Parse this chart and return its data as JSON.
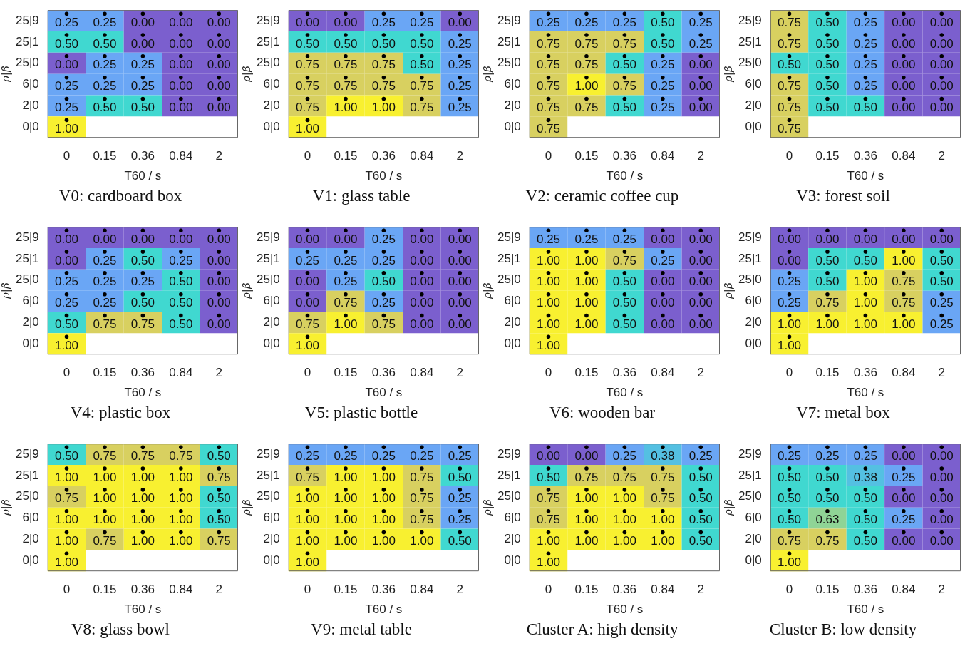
{
  "chart_data": [
    {
      "type": "heatmap",
      "title": "V0: cardboard box",
      "xlabel": "T60 / s",
      "ylabel": "ρ|β",
      "categories": [
        "0",
        "0.15",
        "0.36",
        "0.84",
        "2"
      ],
      "y_categories": [
        "25|9",
        "25|1",
        "25|0",
        "6|0",
        "2|0",
        "0|0"
      ],
      "cells": [
        [
          0.25,
          0.25,
          0,
          0,
          0
        ],
        [
          0.5,
          0.5,
          0,
          0,
          0
        ],
        [
          0,
          0.25,
          0.25,
          0,
          0
        ],
        [
          0.25,
          0.25,
          0.25,
          0,
          0
        ],
        [
          0.25,
          0.5,
          0.5,
          0,
          0
        ],
        [
          1,
          null,
          null,
          null,
          null
        ]
      ],
      "cell_labels": [
        [
          "0.25",
          "0.25",
          "0.00",
          "0.00",
          "0.00"
        ],
        [
          "0.50",
          "0.50",
          "0.00",
          "0.00",
          "0.00"
        ],
        [
          "0.00",
          "0.25",
          "0.25",
          "0.00",
          "0.00"
        ],
        [
          "0.25",
          "0.25",
          "0.25",
          "0.00",
          "0.00"
        ],
        [
          "0.25",
          "0.50",
          "0.50",
          "0.00",
          "0.00"
        ],
        [
          "1.00",
          null,
          null,
          null,
          null
        ]
      ]
    },
    {
      "type": "heatmap",
      "title": "V1: glass table",
      "xlabel": "T60 / s",
      "ylabel": "ρ|β",
      "categories": [
        "0",
        "0.15",
        "0.36",
        "0.84",
        "2"
      ],
      "y_categories": [
        "25|9",
        "25|1",
        "25|0",
        "6|0",
        "2|0",
        "0|0"
      ],
      "cells": [
        [
          0,
          0,
          0.25,
          0.25,
          0
        ],
        [
          0.5,
          0.5,
          0.5,
          0.5,
          0.25
        ],
        [
          0.75,
          0.75,
          0.75,
          0.5,
          0.25
        ],
        [
          0.75,
          0.75,
          0.75,
          0.75,
          0.25
        ],
        [
          0.75,
          1,
          1,
          0.75,
          0.25
        ],
        [
          1,
          null,
          null,
          null,
          null
        ]
      ],
      "cell_labels": [
        [
          "0.00",
          "0.00",
          "0.25",
          "0.25",
          "0.00"
        ],
        [
          "0.50",
          "0.50",
          "0.50",
          "0.50",
          "0.25"
        ],
        [
          "0.75",
          "0.75",
          "0.75",
          "0.50",
          "0.25"
        ],
        [
          "0.75",
          "0.75",
          "0.75",
          "0.75",
          "0.25"
        ],
        [
          "0.75",
          "1.00",
          "1.00",
          "0.75",
          "0.25"
        ],
        [
          "1.00",
          null,
          null,
          null,
          null
        ]
      ]
    },
    {
      "type": "heatmap",
      "title": "V2: ceramic coffee cup",
      "xlabel": "T60 / s",
      "ylabel": "ρ|β",
      "categories": [
        "0",
        "0.15",
        "0.36",
        "0.84",
        "2"
      ],
      "y_categories": [
        "25|9",
        "25|1",
        "25|0",
        "6|0",
        "2|0",
        "0|0"
      ],
      "cells": [
        [
          0.25,
          0.25,
          0.25,
          0.5,
          0.25
        ],
        [
          0.75,
          0.75,
          0.75,
          0.5,
          0.25
        ],
        [
          0.75,
          0.75,
          0.5,
          0.25,
          0
        ],
        [
          0.75,
          1,
          0.75,
          0.25,
          0
        ],
        [
          0.75,
          0.75,
          0.5,
          0.25,
          0
        ],
        [
          0.75,
          null,
          null,
          null,
          null
        ]
      ],
      "cell_labels": [
        [
          "0.25",
          "0.25",
          "0.25",
          "0.50",
          "0.25"
        ],
        [
          "0.75",
          "0.75",
          "0.75",
          "0.50",
          "0.25"
        ],
        [
          "0.75",
          "0.75",
          "0.50",
          "0.25",
          "0.00"
        ],
        [
          "0.75",
          "1.00",
          "0.75",
          "0.25",
          "0.00"
        ],
        [
          "0.75",
          "0.75",
          "0.50",
          "0.25",
          "0.00"
        ],
        [
          "0.75",
          null,
          null,
          null,
          null
        ]
      ]
    },
    {
      "type": "heatmap",
      "title": "V3: forest soil",
      "xlabel": "T60 / s",
      "ylabel": "ρ|β",
      "categories": [
        "0",
        "0.15",
        "0.36",
        "0.84",
        "2"
      ],
      "y_categories": [
        "25|9",
        "25|1",
        "25|0",
        "6|0",
        "2|0",
        "0|0"
      ],
      "cells": [
        [
          0.75,
          0.5,
          0.25,
          0,
          0
        ],
        [
          0.75,
          0.5,
          0.25,
          0,
          0
        ],
        [
          0.5,
          0.5,
          0.25,
          0,
          0
        ],
        [
          0.75,
          0.5,
          0.25,
          0,
          0
        ],
        [
          0.75,
          0.5,
          0.5,
          0,
          0
        ],
        [
          0.75,
          null,
          null,
          null,
          null
        ]
      ],
      "cell_labels": [
        [
          "0.75",
          "0.50",
          "0.25",
          "0.00",
          "0.00"
        ],
        [
          "0.75",
          "0.50",
          "0.25",
          "0.00",
          "0.00"
        ],
        [
          "0.50",
          "0.50",
          "0.25",
          "0.00",
          "0.00"
        ],
        [
          "0.75",
          "0.50",
          "0.25",
          "0.00",
          "0.00"
        ],
        [
          "0.75",
          "0.50",
          "0.50",
          "0.00",
          "0.00"
        ],
        [
          "0.75",
          null,
          null,
          null,
          null
        ]
      ]
    },
    {
      "type": "heatmap",
      "title": "V4: plastic box",
      "xlabel": "T60 / s",
      "ylabel": "ρ|β",
      "categories": [
        "0",
        "0.15",
        "0.36",
        "0.84",
        "2"
      ],
      "y_categories": [
        "25|9",
        "25|1",
        "25|0",
        "6|0",
        "2|0",
        "0|0"
      ],
      "cells": [
        [
          0,
          0,
          0,
          0,
          0
        ],
        [
          0,
          0.25,
          0.5,
          0.25,
          0
        ],
        [
          0.25,
          0.25,
          0.25,
          0.5,
          0
        ],
        [
          0.25,
          0.25,
          0.5,
          0.5,
          0
        ],
        [
          0.5,
          0.75,
          0.75,
          0.5,
          0
        ],
        [
          1,
          null,
          null,
          null,
          null
        ]
      ],
      "cell_labels": [
        [
          "0.00",
          "0.00",
          "0.00",
          "0.00",
          "0.00"
        ],
        [
          "0.00",
          "0.25",
          "0.50",
          "0.25",
          "0.00"
        ],
        [
          "0.25",
          "0.25",
          "0.25",
          "0.50",
          "0.00"
        ],
        [
          "0.25",
          "0.25",
          "0.50",
          "0.50",
          "0.00"
        ],
        [
          "0.50",
          "0.75",
          "0.75",
          "0.50",
          "0.00"
        ],
        [
          "1.00",
          null,
          null,
          null,
          null
        ]
      ]
    },
    {
      "type": "heatmap",
      "title": "V5: plastic bottle",
      "xlabel": "T60 / s",
      "ylabel": "ρ|β",
      "categories": [
        "0",
        "0.15",
        "0.36",
        "0.84",
        "2"
      ],
      "y_categories": [
        "25|9",
        "25|1",
        "25|0",
        "6|0",
        "2|0",
        "0|0"
      ],
      "cells": [
        [
          0,
          0,
          0.25,
          0,
          0
        ],
        [
          0.25,
          0.25,
          0.25,
          0,
          0
        ],
        [
          0,
          0.25,
          0.5,
          0,
          0
        ],
        [
          0,
          0.75,
          0.25,
          0,
          0
        ],
        [
          0.75,
          1,
          0.75,
          0,
          0
        ],
        [
          1,
          null,
          null,
          null,
          null
        ]
      ],
      "cell_labels": [
        [
          "0.00",
          "0.00",
          "0.25",
          "0.00",
          "0.00"
        ],
        [
          "0.25",
          "0.25",
          "0.25",
          "0.00",
          "0.00"
        ],
        [
          "0.00",
          "0.25",
          "0.50",
          "0.00",
          "0.00"
        ],
        [
          "0.00",
          "0.75",
          "0.25",
          "0.00",
          "0.00"
        ],
        [
          "0.75",
          "1.00",
          "0.75",
          "0.00",
          "0.00"
        ],
        [
          "1.00",
          null,
          null,
          null,
          null
        ]
      ]
    },
    {
      "type": "heatmap",
      "title": "V6: wooden bar",
      "xlabel": "T60 / s",
      "ylabel": "ρ|β",
      "categories": [
        "0",
        "0.15",
        "0.36",
        "0.84",
        "2"
      ],
      "y_categories": [
        "25|9",
        "25|1",
        "25|0",
        "6|0",
        "2|0",
        "0|0"
      ],
      "cells": [
        [
          0.25,
          0.25,
          0.25,
          0,
          0
        ],
        [
          1,
          1,
          0.75,
          0.25,
          0
        ],
        [
          1,
          1,
          0.5,
          0,
          0
        ],
        [
          1,
          1,
          0.5,
          0,
          0
        ],
        [
          1,
          1,
          0.5,
          0,
          0
        ],
        [
          1,
          null,
          null,
          null,
          null
        ]
      ],
      "cell_labels": [
        [
          "0.25",
          "0.25",
          "0.25",
          "0.00",
          "0.00"
        ],
        [
          "1.00",
          "1.00",
          "0.75",
          "0.25",
          "0.00"
        ],
        [
          "1.00",
          "1.00",
          "0.50",
          "0.00",
          "0.00"
        ],
        [
          "1.00",
          "1.00",
          "0.50",
          "0.00",
          "0.00"
        ],
        [
          "1.00",
          "1.00",
          "0.50",
          "0.00",
          "0.00"
        ],
        [
          "1.00",
          null,
          null,
          null,
          null
        ]
      ]
    },
    {
      "type": "heatmap",
      "title": "V7: metal box",
      "xlabel": "T60 / s",
      "ylabel": "ρ|β",
      "categories": [
        "0",
        "0.15",
        "0.36",
        "0.84",
        "2"
      ],
      "y_categories": [
        "25|9",
        "25|1",
        "25|0",
        "6|0",
        "2|0",
        "0|0"
      ],
      "cells": [
        [
          0,
          0,
          0,
          0,
          0
        ],
        [
          0,
          0.5,
          0.5,
          1,
          0.5
        ],
        [
          0.25,
          0.5,
          1,
          0.75,
          0.5
        ],
        [
          0.25,
          0.75,
          1,
          0.75,
          0.25
        ],
        [
          1,
          1,
          1,
          1,
          0.25
        ],
        [
          1,
          null,
          null,
          null,
          null
        ]
      ],
      "cell_labels": [
        [
          "0.00",
          "0.00",
          "0.00",
          "0.00",
          "0.00"
        ],
        [
          "0.00",
          "0.50",
          "0.50",
          "1.00",
          "0.50"
        ],
        [
          "0.25",
          "0.50",
          "1.00",
          "0.75",
          "0.50"
        ],
        [
          "0.25",
          "0.75",
          "1.00",
          "0.75",
          "0.25"
        ],
        [
          "1.00",
          "1.00",
          "1.00",
          "1.00",
          "0.25"
        ],
        [
          "1.00",
          null,
          null,
          null,
          null
        ]
      ]
    },
    {
      "type": "heatmap",
      "title": "V8: glass bowl",
      "xlabel": "T60 / s",
      "ylabel": "ρ|β",
      "categories": [
        "0",
        "0.15",
        "0.36",
        "0.84",
        "2"
      ],
      "y_categories": [
        "25|9",
        "25|1",
        "25|0",
        "6|0",
        "2|0",
        "0|0"
      ],
      "cells": [
        [
          0.5,
          0.75,
          0.75,
          0.75,
          0.5
        ],
        [
          1,
          1,
          1,
          1,
          0.75
        ],
        [
          0.75,
          1,
          1,
          1,
          0.5
        ],
        [
          1,
          1,
          1,
          1,
          0.5
        ],
        [
          1,
          0.75,
          1,
          1,
          0.75
        ],
        [
          1,
          null,
          null,
          null,
          null
        ]
      ],
      "cell_labels": [
        [
          "0.50",
          "0.75",
          "0.75",
          "0.75",
          "0.50"
        ],
        [
          "1.00",
          "1.00",
          "1.00",
          "1.00",
          "0.75"
        ],
        [
          "0.75",
          "1.00",
          "1.00",
          "1.00",
          "0.50"
        ],
        [
          "1.00",
          "1.00",
          "1.00",
          "1.00",
          "0.50"
        ],
        [
          "1.00",
          "0.75",
          "1.00",
          "1.00",
          "0.75"
        ],
        [
          "1.00",
          null,
          null,
          null,
          null
        ]
      ]
    },
    {
      "type": "heatmap",
      "title": "V9: metal table",
      "xlabel": "T60 / s",
      "ylabel": "ρ|β",
      "categories": [
        "0",
        "0.15",
        "0.36",
        "0.84",
        "2"
      ],
      "y_categories": [
        "25|9",
        "25|1",
        "25|0",
        "6|0",
        "2|0",
        "0|0"
      ],
      "cells": [
        [
          0.25,
          0.25,
          0.25,
          0.25,
          0.25
        ],
        [
          0.75,
          1,
          1,
          0.75,
          0.5
        ],
        [
          1,
          1,
          1,
          0.75,
          0.25
        ],
        [
          1,
          1,
          1,
          0.75,
          0.25
        ],
        [
          1,
          1,
          1,
          1,
          0.5
        ],
        [
          1,
          null,
          null,
          null,
          null
        ]
      ],
      "cell_labels": [
        [
          "0.25",
          "0.25",
          "0.25",
          "0.25",
          "0.25"
        ],
        [
          "0.75",
          "1.00",
          "1.00",
          "0.75",
          "0.50"
        ],
        [
          "1.00",
          "1.00",
          "1.00",
          "0.75",
          "0.25"
        ],
        [
          "1.00",
          "1.00",
          "1.00",
          "0.75",
          "0.25"
        ],
        [
          "1.00",
          "1.00",
          "1.00",
          "1.00",
          "0.50"
        ],
        [
          "1.00",
          null,
          null,
          null,
          null
        ]
      ]
    },
    {
      "type": "heatmap",
      "title": "Cluster A: high density",
      "xlabel": "T60 / s",
      "ylabel": "ρ|β",
      "categories": [
        "0",
        "0.15",
        "0.36",
        "0.84",
        "2"
      ],
      "y_categories": [
        "25|9",
        "25|1",
        "25|0",
        "6|0",
        "2|0",
        "0|0"
      ],
      "cells": [
        [
          0,
          0,
          0.25,
          0.38,
          0.25
        ],
        [
          0.5,
          0.75,
          0.75,
          0.75,
          0.5
        ],
        [
          0.75,
          1,
          1,
          0.75,
          0.5
        ],
        [
          0.75,
          1,
          1,
          1,
          0.5
        ],
        [
          1,
          1,
          1,
          1,
          0.5
        ],
        [
          1,
          null,
          null,
          null,
          null
        ]
      ],
      "cell_labels": [
        [
          "0.00",
          "0.00",
          "0.25",
          "0.38",
          "0.25"
        ],
        [
          "0.50",
          "0.75",
          "0.75",
          "0.75",
          "0.50"
        ],
        [
          "0.75",
          "1.00",
          "1.00",
          "0.75",
          "0.50"
        ],
        [
          "0.75",
          "1.00",
          "1.00",
          "1.00",
          "0.50"
        ],
        [
          "1.00",
          "1.00",
          "1.00",
          "1.00",
          "0.50"
        ],
        [
          "1.00",
          null,
          null,
          null,
          null
        ]
      ]
    },
    {
      "type": "heatmap",
      "title": "Cluster B: low density",
      "xlabel": "T60 / s",
      "ylabel": "ρ|β",
      "categories": [
        "0",
        "0.15",
        "0.36",
        "0.84",
        "2"
      ],
      "y_categories": [
        "25|9",
        "25|1",
        "25|0",
        "6|0",
        "2|0",
        "0|0"
      ],
      "cells": [
        [
          0.25,
          0.25,
          0.25,
          0,
          0
        ],
        [
          0.5,
          0.5,
          0.38,
          0.25,
          0
        ],
        [
          0.5,
          0.5,
          0.5,
          0,
          0
        ],
        [
          0.5,
          0.63,
          0.5,
          0.25,
          0
        ],
        [
          0.75,
          0.75,
          0.5,
          0,
          0
        ],
        [
          1,
          null,
          null,
          null,
          null
        ]
      ],
      "cell_labels": [
        [
          "0.25",
          "0.25",
          "0.25",
          "0.00",
          "0.00"
        ],
        [
          "0.50",
          "0.50",
          "0.38",
          "0.25",
          "0.00"
        ],
        [
          "0.50",
          "0.50",
          "0.50",
          "0.00",
          "0.00"
        ],
        [
          "0.50",
          "0.63",
          "0.50",
          "0.25",
          "0.00"
        ],
        [
          "0.75",
          "0.75",
          "0.50",
          "0.00",
          "0.00"
        ],
        [
          "1.00",
          null,
          null,
          null,
          null
        ]
      ]
    }
  ]
}
